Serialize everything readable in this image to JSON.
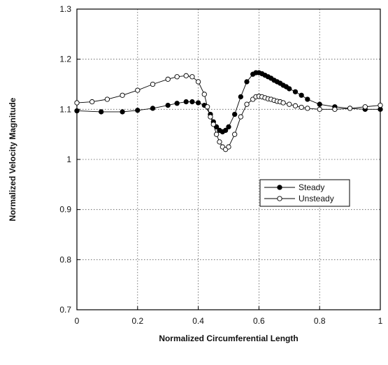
{
  "chart_data": {
    "type": "line",
    "xlabel": "Normalized Circumferential  Length",
    "ylabel": "Normalized Velocity Magnitude",
    "xlim": [
      0,
      1
    ],
    "ylim": [
      0.7,
      1.3
    ],
    "xticks": [
      0,
      0.2,
      0.4,
      0.6,
      0.8,
      1
    ],
    "xtick_labels": [
      "0",
      "0.2",
      "0.4",
      "0.6",
      "0.8",
      "1"
    ],
    "yticks": [
      0.7,
      0.8,
      0.9,
      1.0,
      1.1,
      1.2,
      1.3
    ],
    "ytick_labels": [
      "0.7",
      "0.8",
      "0.9",
      "1",
      "1.1",
      "1.2",
      "1.3"
    ],
    "grid": true,
    "legend_position": "right-middle",
    "series": [
      {
        "name": "Steady",
        "marker": "filled-circle",
        "color": "#000000",
        "x": [
          0,
          0.08,
          0.15,
          0.2,
          0.25,
          0.3,
          0.33,
          0.36,
          0.38,
          0.4,
          0.42,
          0.44,
          0.45,
          0.46,
          0.47,
          0.48,
          0.49,
          0.5,
          0.52,
          0.54,
          0.56,
          0.58,
          0.59,
          0.6,
          0.61,
          0.62,
          0.63,
          0.64,
          0.65,
          0.66,
          0.67,
          0.68,
          0.69,
          0.7,
          0.72,
          0.74,
          0.76,
          0.8,
          0.85,
          0.9,
          0.95,
          1.0
        ],
        "y": [
          1.097,
          1.095,
          1.095,
          1.098,
          1.102,
          1.108,
          1.112,
          1.115,
          1.115,
          1.113,
          1.108,
          1.09,
          1.075,
          1.065,
          1.058,
          1.055,
          1.058,
          1.065,
          1.09,
          1.125,
          1.155,
          1.17,
          1.173,
          1.173,
          1.171,
          1.168,
          1.165,
          1.162,
          1.158,
          1.155,
          1.152,
          1.148,
          1.145,
          1.141,
          1.135,
          1.128,
          1.12,
          1.11,
          1.105,
          1.102,
          1.1,
          1.1
        ]
      },
      {
        "name": "Unsteady",
        "marker": "open-circle",
        "color": "#000000",
        "x": [
          0,
          0.05,
          0.1,
          0.15,
          0.2,
          0.25,
          0.3,
          0.33,
          0.36,
          0.38,
          0.4,
          0.42,
          0.43,
          0.44,
          0.45,
          0.46,
          0.47,
          0.48,
          0.49,
          0.5,
          0.52,
          0.54,
          0.56,
          0.58,
          0.59,
          0.6,
          0.61,
          0.62,
          0.63,
          0.64,
          0.65,
          0.66,
          0.67,
          0.68,
          0.7,
          0.72,
          0.74,
          0.76,
          0.8,
          0.85,
          0.9,
          0.95,
          1.0
        ],
        "y": [
          1.113,
          1.115,
          1.12,
          1.128,
          1.138,
          1.15,
          1.16,
          1.165,
          1.167,
          1.165,
          1.155,
          1.13,
          1.105,
          1.085,
          1.07,
          1.05,
          1.035,
          1.025,
          1.02,
          1.025,
          1.05,
          1.085,
          1.11,
          1.12,
          1.125,
          1.126,
          1.125,
          1.123,
          1.121,
          1.12,
          1.118,
          1.116,
          1.115,
          1.113,
          1.11,
          1.107,
          1.104,
          1.102,
          1.1,
          1.1,
          1.102,
          1.105,
          1.108
        ]
      }
    ]
  }
}
